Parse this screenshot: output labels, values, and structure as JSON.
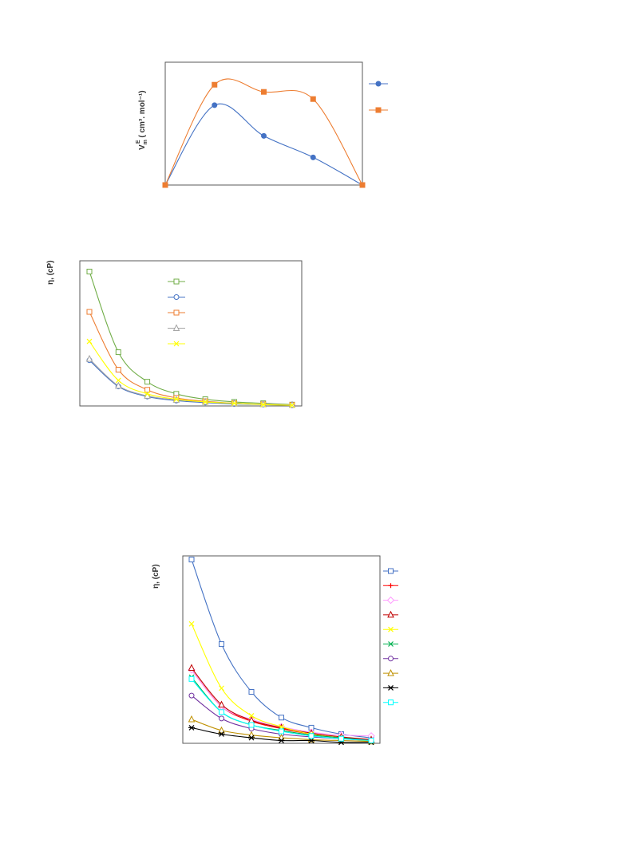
{
  "chart_data": [
    {
      "type": "line",
      "ylabel_main": "V",
      "ylabel_sub": "m",
      "ylabel_sup": "E",
      "ylabel_rest": " ( cm³. mol⁻¹)",
      "x": [
        0,
        1,
        2,
        3,
        4
      ],
      "series": [
        {
          "color": "#4472c4",
          "marker": "filled-circle",
          "values": [
            0,
            0.78,
            0.48,
            0.27,
            0
          ]
        },
        {
          "color": "#ed7d31",
          "marker": "filled-square",
          "values": [
            0,
            0.98,
            0.91,
            0.84,
            0
          ]
        }
      ],
      "ylim": [
        0,
        1.2
      ],
      "legend": "right",
      "grid": false
    },
    {
      "type": "line",
      "ylabel": "η, (cP)",
      "x": [
        0,
        1,
        2,
        3,
        4,
        5,
        6,
        7
      ],
      "series": [
        {
          "color": "#70ad47",
          "marker": "open-square",
          "values": [
            10,
            4.0,
            1.8,
            0.9,
            0.5,
            0.3,
            0.2,
            0.1
          ]
        },
        {
          "color": "#4472c4",
          "marker": "open-circle",
          "values": [
            3.4,
            1.45,
            0.7,
            0.4,
            0.25,
            0.15,
            0.1,
            0.05
          ]
        },
        {
          "color": "#ed7d31",
          "marker": "open-square",
          "values": [
            7.0,
            2.7,
            1.2,
            0.6,
            0.35,
            0.2,
            0.12,
            0.08
          ]
        },
        {
          "color": "#a5a5a5",
          "marker": "open-triangle",
          "values": [
            3.5,
            1.5,
            0.75,
            0.45,
            0.3,
            0.2,
            0.12,
            0.08
          ]
        },
        {
          "color": "#ffff00",
          "marker": "cross",
          "values": [
            4.8,
            1.9,
            0.9,
            0.5,
            0.3,
            0.2,
            0.1,
            0.05
          ]
        }
      ],
      "ylim": [
        0,
        10.8
      ],
      "legend": "top-center",
      "grid": false
    },
    {
      "type": "line",
      "ylabel": "η, (cP)",
      "x": [
        0,
        1,
        2,
        3,
        4,
        5,
        6
      ],
      "series": [
        {
          "color": "#4472c4",
          "marker": "open-square",
          "values": [
            10,
            5.4,
            2.8,
            1.4,
            0.85,
            0.5,
            0.3
          ]
        },
        {
          "color": "#ff0000",
          "marker": "plus",
          "values": [
            4.0,
            2.0,
            1.2,
            0.8,
            0.5,
            0.3,
            0.2
          ]
        },
        {
          "color": "#ff99ff",
          "marker": "open-diamond",
          "values": [
            4.0,
            2.0,
            1.3,
            0.9,
            0.6,
            0.45,
            0.4
          ]
        },
        {
          "color": "#c00000",
          "marker": "open-triangle",
          "values": [
            4.1,
            2.1,
            1.25,
            0.85,
            0.55,
            0.35,
            0.2
          ]
        },
        {
          "color": "#ffff00",
          "marker": "cross",
          "values": [
            6.5,
            3.0,
            1.5,
            0.9,
            0.5,
            0.3,
            0.1
          ]
        },
        {
          "color": "#00b050",
          "marker": "cross",
          "values": [
            3.6,
            1.7,
            1.0,
            0.7,
            0.45,
            0.3,
            0.15
          ]
        },
        {
          "color": "#7030a0",
          "marker": "open-circle",
          "values": [
            2.6,
            1.35,
            0.8,
            0.5,
            0.35,
            0.25,
            0.15
          ]
        },
        {
          "color": "#bf9000",
          "marker": "open-triangle",
          "values": [
            1.3,
            0.7,
            0.45,
            0.3,
            0.2,
            0.15,
            0.1
          ]
        },
        {
          "color": "#000000",
          "marker": "asterisk",
          "values": [
            0.85,
            0.5,
            0.3,
            0.15,
            0.15,
            0.05,
            0.05
          ]
        },
        {
          "color": "#00ffff",
          "marker": "open-square",
          "values": [
            3.5,
            1.7,
            1.0,
            0.65,
            0.4,
            0.25,
            0.15
          ]
        }
      ],
      "ylim": [
        0,
        10.2
      ],
      "legend": "right",
      "grid": false
    }
  ]
}
